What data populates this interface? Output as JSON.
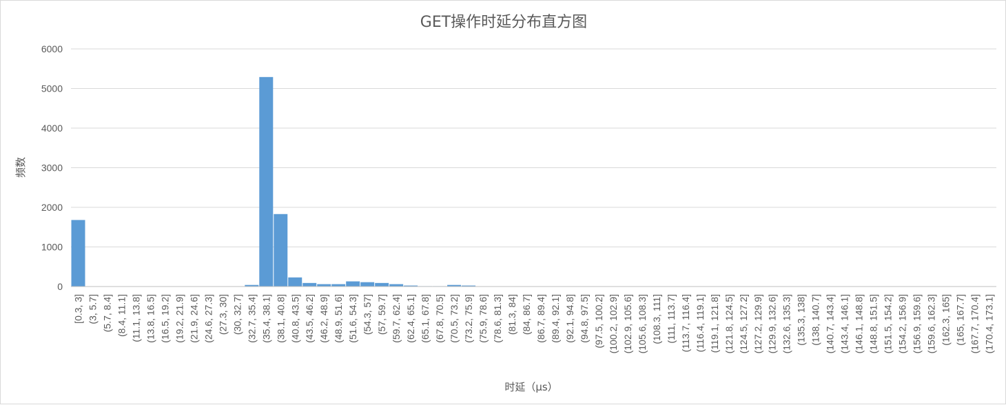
{
  "chart_data": {
    "type": "bar",
    "title": "GET操作时延分布直方图",
    "xlabel": "时延（μs）",
    "ylabel": "频数",
    "ylim": [
      0,
      6000
    ],
    "yticks": [
      0,
      1000,
      2000,
      3000,
      4000,
      5000,
      6000
    ],
    "grid": true,
    "legend": "none",
    "bar_color": "#5b9bd5",
    "categories": [
      "[0.3, 3]",
      "(3, 5.7]",
      "(5.7, 8.4]",
      "(8.4, 11.1]",
      "(11.1, 13.8]",
      "(13.8, 16.5]",
      "(16.5, 19.2]",
      "(19.2, 21.9]",
      "(21.9, 24.6]",
      "(24.6, 27.3]",
      "(27.3, 30]",
      "(30, 32.7]",
      "(32.7, 35.4]",
      "(35.4, 38.1]",
      "(38.1, 40.8]",
      "(40.8, 43.5]",
      "(43.5, 46.2]",
      "(46.2, 48.9]",
      "(48.9, 51.6]",
      "(51.6, 54.3]",
      "(54.3, 57]",
      "(57, 59.7]",
      "(59.7, 62.4]",
      "(62.4, 65.1]",
      "(65.1, 67.8]",
      "(67.8, 70.5]",
      "(70.5, 73.2]",
      "(73.2, 75.9]",
      "(75.9, 78.6]",
      "(78.6, 81.3]",
      "(81.3, 84]",
      "(84, 86.7]",
      "(86.7, 89.4]",
      "(89.4, 92.1]",
      "(92.1, 94.8]",
      "(94.8, 97.5]",
      "(97.5, 100.2]",
      "(100.2, 102.9]",
      "(102.9, 105.6]",
      "(105.6, 108.3]",
      "(108.3, 111]",
      "(111, 113.7]",
      "(113.7, 116.4]",
      "(116.4, 119.1]",
      "(119.1, 121.8]",
      "(121.8, 124.5]",
      "(124.5, 127.2]",
      "(127.2, 129.9]",
      "(129.9, 132.6]",
      "(132.6, 135.3]",
      "(135.3, 138]",
      "(138, 140.7]",
      "(140.7, 143.4]",
      "(143.4, 146.1]",
      "(146.1, 148.8]",
      "(148.8, 151.5]",
      "(151.5, 154.2]",
      "(154.2, 156.9]",
      "(156.9, 159.6]",
      "(159.6, 162.3]",
      "(162.3, 165]",
      "(165, 167.7]",
      "(167.7, 170.4]",
      "(170.4, 173.1]"
    ],
    "values": [
      1680,
      0,
      0,
      0,
      0,
      0,
      0,
      0,
      0,
      0,
      0,
      2,
      40,
      5290,
      1830,
      230,
      90,
      60,
      60,
      130,
      110,
      90,
      60,
      25,
      10,
      10,
      40,
      25,
      5,
      3,
      2,
      2,
      1,
      1,
      1,
      0,
      0,
      0,
      0,
      0,
      0,
      0,
      0,
      0,
      0,
      0,
      0,
      0,
      0,
      0,
      0,
      0,
      0,
      0,
      0,
      0,
      0,
      0,
      0,
      0,
      0,
      0,
      0,
      0
    ]
  }
}
